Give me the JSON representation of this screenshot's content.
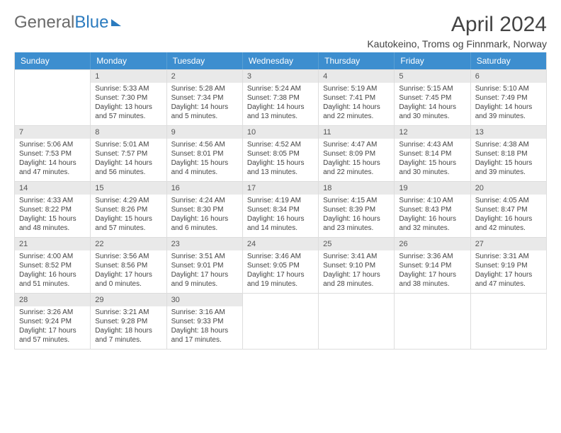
{
  "brand": {
    "part1": "General",
    "part2": "Blue"
  },
  "title": "April 2024",
  "location": "Kautokeino, Troms og Finnmark, Norway",
  "day_headers": [
    "Sunday",
    "Monday",
    "Tuesday",
    "Wednesday",
    "Thursday",
    "Friday",
    "Saturday"
  ],
  "colors": {
    "header_bg": "#3d8ecf",
    "header_text": "#ffffff",
    "daynum_bg": "#e9e9e9",
    "border": "#dddddd",
    "text": "#444444"
  },
  "weeks": [
    [
      {
        "num": "",
        "empty": true
      },
      {
        "num": "1",
        "sunrise": "Sunrise: 5:33 AM",
        "sunset": "Sunset: 7:30 PM",
        "daylight": "Daylight: 13 hours and 57 minutes."
      },
      {
        "num": "2",
        "sunrise": "Sunrise: 5:28 AM",
        "sunset": "Sunset: 7:34 PM",
        "daylight": "Daylight: 14 hours and 5 minutes."
      },
      {
        "num": "3",
        "sunrise": "Sunrise: 5:24 AM",
        "sunset": "Sunset: 7:38 PM",
        "daylight": "Daylight: 14 hours and 13 minutes."
      },
      {
        "num": "4",
        "sunrise": "Sunrise: 5:19 AM",
        "sunset": "Sunset: 7:41 PM",
        "daylight": "Daylight: 14 hours and 22 minutes."
      },
      {
        "num": "5",
        "sunrise": "Sunrise: 5:15 AM",
        "sunset": "Sunset: 7:45 PM",
        "daylight": "Daylight: 14 hours and 30 minutes."
      },
      {
        "num": "6",
        "sunrise": "Sunrise: 5:10 AM",
        "sunset": "Sunset: 7:49 PM",
        "daylight": "Daylight: 14 hours and 39 minutes."
      }
    ],
    [
      {
        "num": "7",
        "sunrise": "Sunrise: 5:06 AM",
        "sunset": "Sunset: 7:53 PM",
        "daylight": "Daylight: 14 hours and 47 minutes."
      },
      {
        "num": "8",
        "sunrise": "Sunrise: 5:01 AM",
        "sunset": "Sunset: 7:57 PM",
        "daylight": "Daylight: 14 hours and 56 minutes."
      },
      {
        "num": "9",
        "sunrise": "Sunrise: 4:56 AM",
        "sunset": "Sunset: 8:01 PM",
        "daylight": "Daylight: 15 hours and 4 minutes."
      },
      {
        "num": "10",
        "sunrise": "Sunrise: 4:52 AM",
        "sunset": "Sunset: 8:05 PM",
        "daylight": "Daylight: 15 hours and 13 minutes."
      },
      {
        "num": "11",
        "sunrise": "Sunrise: 4:47 AM",
        "sunset": "Sunset: 8:09 PM",
        "daylight": "Daylight: 15 hours and 22 minutes."
      },
      {
        "num": "12",
        "sunrise": "Sunrise: 4:43 AM",
        "sunset": "Sunset: 8:14 PM",
        "daylight": "Daylight: 15 hours and 30 minutes."
      },
      {
        "num": "13",
        "sunrise": "Sunrise: 4:38 AM",
        "sunset": "Sunset: 8:18 PM",
        "daylight": "Daylight: 15 hours and 39 minutes."
      }
    ],
    [
      {
        "num": "14",
        "sunrise": "Sunrise: 4:33 AM",
        "sunset": "Sunset: 8:22 PM",
        "daylight": "Daylight: 15 hours and 48 minutes."
      },
      {
        "num": "15",
        "sunrise": "Sunrise: 4:29 AM",
        "sunset": "Sunset: 8:26 PM",
        "daylight": "Daylight: 15 hours and 57 minutes."
      },
      {
        "num": "16",
        "sunrise": "Sunrise: 4:24 AM",
        "sunset": "Sunset: 8:30 PM",
        "daylight": "Daylight: 16 hours and 6 minutes."
      },
      {
        "num": "17",
        "sunrise": "Sunrise: 4:19 AM",
        "sunset": "Sunset: 8:34 PM",
        "daylight": "Daylight: 16 hours and 14 minutes."
      },
      {
        "num": "18",
        "sunrise": "Sunrise: 4:15 AM",
        "sunset": "Sunset: 8:39 PM",
        "daylight": "Daylight: 16 hours and 23 minutes."
      },
      {
        "num": "19",
        "sunrise": "Sunrise: 4:10 AM",
        "sunset": "Sunset: 8:43 PM",
        "daylight": "Daylight: 16 hours and 32 minutes."
      },
      {
        "num": "20",
        "sunrise": "Sunrise: 4:05 AM",
        "sunset": "Sunset: 8:47 PM",
        "daylight": "Daylight: 16 hours and 42 minutes."
      }
    ],
    [
      {
        "num": "21",
        "sunrise": "Sunrise: 4:00 AM",
        "sunset": "Sunset: 8:52 PM",
        "daylight": "Daylight: 16 hours and 51 minutes."
      },
      {
        "num": "22",
        "sunrise": "Sunrise: 3:56 AM",
        "sunset": "Sunset: 8:56 PM",
        "daylight": "Daylight: 17 hours and 0 minutes."
      },
      {
        "num": "23",
        "sunrise": "Sunrise: 3:51 AM",
        "sunset": "Sunset: 9:01 PM",
        "daylight": "Daylight: 17 hours and 9 minutes."
      },
      {
        "num": "24",
        "sunrise": "Sunrise: 3:46 AM",
        "sunset": "Sunset: 9:05 PM",
        "daylight": "Daylight: 17 hours and 19 minutes."
      },
      {
        "num": "25",
        "sunrise": "Sunrise: 3:41 AM",
        "sunset": "Sunset: 9:10 PM",
        "daylight": "Daylight: 17 hours and 28 minutes."
      },
      {
        "num": "26",
        "sunrise": "Sunrise: 3:36 AM",
        "sunset": "Sunset: 9:14 PM",
        "daylight": "Daylight: 17 hours and 38 minutes."
      },
      {
        "num": "27",
        "sunrise": "Sunrise: 3:31 AM",
        "sunset": "Sunset: 9:19 PM",
        "daylight": "Daylight: 17 hours and 47 minutes."
      }
    ],
    [
      {
        "num": "28",
        "sunrise": "Sunrise: 3:26 AM",
        "sunset": "Sunset: 9:24 PM",
        "daylight": "Daylight: 17 hours and 57 minutes."
      },
      {
        "num": "29",
        "sunrise": "Sunrise: 3:21 AM",
        "sunset": "Sunset: 9:28 PM",
        "daylight": "Daylight: 18 hours and 7 minutes."
      },
      {
        "num": "30",
        "sunrise": "Sunrise: 3:16 AM",
        "sunset": "Sunset: 9:33 PM",
        "daylight": "Daylight: 18 hours and 17 minutes."
      },
      {
        "num": "",
        "empty": true
      },
      {
        "num": "",
        "empty": true
      },
      {
        "num": "",
        "empty": true
      },
      {
        "num": "",
        "empty": true
      }
    ]
  ]
}
